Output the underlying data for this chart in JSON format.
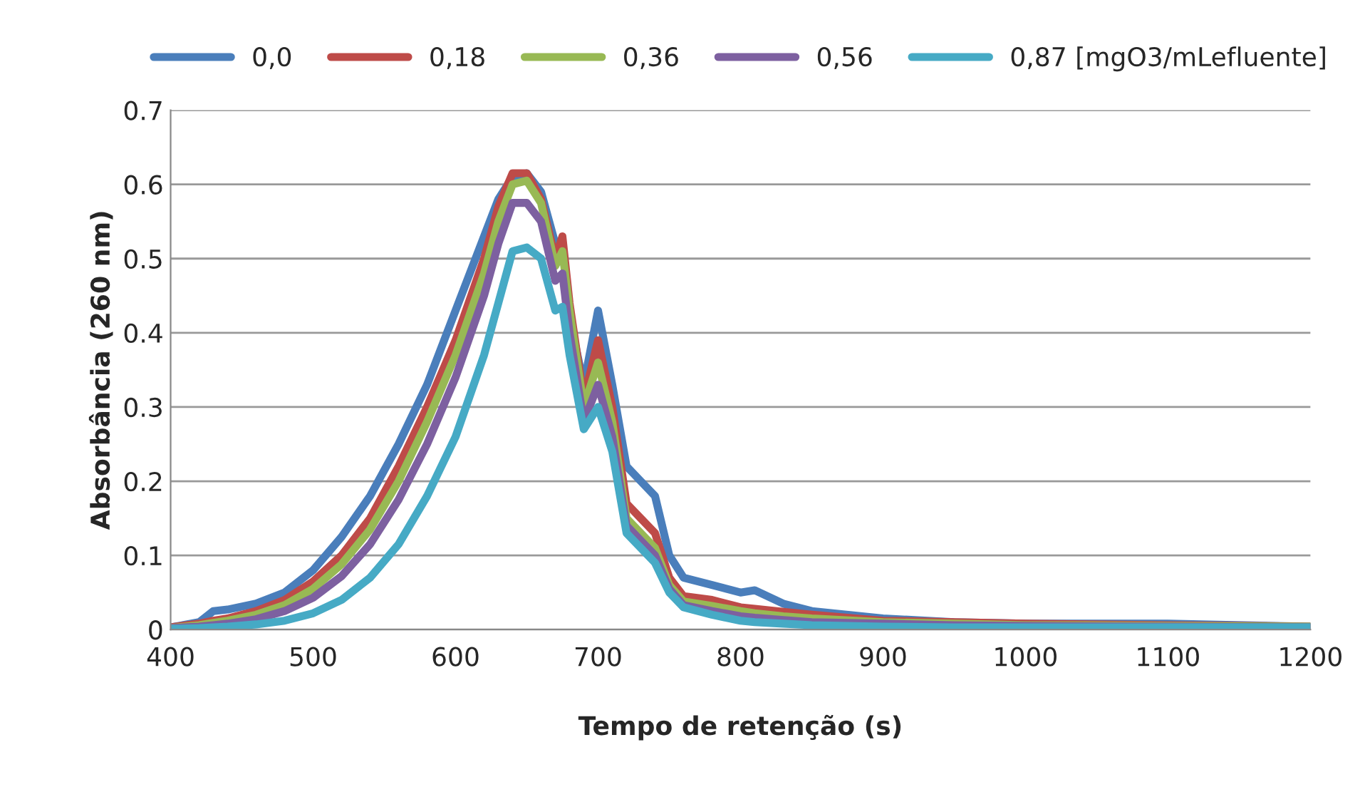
{
  "chart_data": {
    "type": "line",
    "xlabel": "Tempo de retenção (s)",
    "ylabel": "Absorbância (260 nm)",
    "x": [
      400,
      420,
      430,
      440,
      460,
      480,
      500,
      520,
      540,
      560,
      580,
      600,
      620,
      630,
      640,
      650,
      660,
      670,
      675,
      680,
      690,
      700,
      710,
      720,
      730,
      740,
      750,
      760,
      780,
      800,
      810,
      830,
      850,
      900,
      950,
      1000,
      1100,
      1200
    ],
    "series": [
      {
        "name": "0,0",
        "color": "#4a7ebb",
        "values": [
          0.003,
          0.01,
          0.025,
          0.027,
          0.035,
          0.05,
          0.08,
          0.125,
          0.18,
          0.25,
          0.33,
          0.43,
          0.53,
          0.58,
          0.61,
          0.615,
          0.59,
          0.52,
          0.52,
          0.42,
          0.33,
          0.43,
          0.33,
          0.22,
          0.2,
          0.18,
          0.1,
          0.07,
          0.06,
          0.05,
          0.053,
          0.035,
          0.025,
          0.015,
          0.01,
          0.008,
          0.008,
          0.004
        ]
      },
      {
        "name": "0,18",
        "color": "#be4b48",
        "values": [
          0.003,
          0.008,
          0.012,
          0.015,
          0.025,
          0.04,
          0.065,
          0.1,
          0.15,
          0.22,
          0.3,
          0.39,
          0.5,
          0.57,
          0.615,
          0.615,
          0.58,
          0.5,
          0.53,
          0.44,
          0.31,
          0.39,
          0.3,
          0.17,
          0.15,
          0.13,
          0.07,
          0.045,
          0.04,
          0.03,
          0.028,
          0.024,
          0.02,
          0.012,
          0.01,
          0.008,
          0.006,
          0.004
        ]
      },
      {
        "name": "0,36",
        "color": "#98b954",
        "values": [
          0.002,
          0.006,
          0.009,
          0.012,
          0.02,
          0.033,
          0.055,
          0.088,
          0.135,
          0.2,
          0.28,
          0.37,
          0.48,
          0.55,
          0.6,
          0.605,
          0.575,
          0.49,
          0.51,
          0.43,
          0.3,
          0.36,
          0.28,
          0.15,
          0.13,
          0.11,
          0.06,
          0.038,
          0.032,
          0.025,
          0.022,
          0.018,
          0.015,
          0.01,
          0.008,
          0.006,
          0.005,
          0.004
        ]
      },
      {
        "name": "0,56",
        "color": "#7d60a0",
        "values": [
          0.002,
          0.004,
          0.006,
          0.008,
          0.014,
          0.025,
          0.043,
          0.072,
          0.115,
          0.175,
          0.25,
          0.34,
          0.45,
          0.52,
          0.575,
          0.575,
          0.55,
          0.47,
          0.48,
          0.4,
          0.28,
          0.33,
          0.26,
          0.14,
          0.12,
          0.1,
          0.055,
          0.033,
          0.025,
          0.018,
          0.016,
          0.013,
          0.01,
          0.008,
          0.006,
          0.005,
          0.004,
          0.003
        ]
      },
      {
        "name": "0,87 [mgO3/mLefluente]",
        "color": "#46aac5",
        "values": [
          0.001,
          0.002,
          0.003,
          0.004,
          0.007,
          0.012,
          0.022,
          0.04,
          0.07,
          0.115,
          0.18,
          0.26,
          0.37,
          0.44,
          0.51,
          0.515,
          0.5,
          0.43,
          0.435,
          0.37,
          0.27,
          0.3,
          0.24,
          0.13,
          0.11,
          0.09,
          0.05,
          0.03,
          0.02,
          0.012,
          0.01,
          0.008,
          0.006,
          0.004,
          0.003,
          0.003,
          0.003,
          0.003
        ]
      }
    ],
    "xlim": [
      400,
      1200
    ],
    "xticks": [
      400,
      500,
      600,
      700,
      800,
      900,
      1000,
      1100,
      1200
    ],
    "ylim": [
      0,
      0.7
    ],
    "yticks": [
      {
        "value": 0,
        "label": "0"
      },
      {
        "value": 0.1,
        "label": "0.1"
      },
      {
        "value": 0.2,
        "label": "0.2"
      },
      {
        "value": 0.3,
        "label": "0.3"
      },
      {
        "value": 0.4,
        "label": "0.4"
      },
      {
        "value": 0.5,
        "label": "0.5"
      },
      {
        "value": 0.6,
        "label": "0.6"
      },
      {
        "value": 0.7,
        "label": "0.7"
      }
    ],
    "grid": "y",
    "legend": "top",
    "marker": "none",
    "line_style": "solid"
  }
}
